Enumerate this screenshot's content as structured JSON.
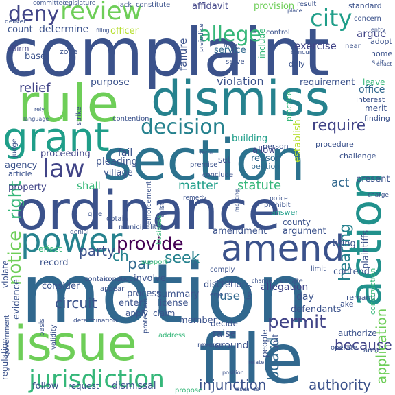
{
  "palette": {
    "deep_purple": "#440154",
    "indigo": "#3b528b",
    "slate_blue": "#414487",
    "steel_blue": "#31688e",
    "teal": "#26828e",
    "sea_green": "#1f9e89",
    "green": "#35b779",
    "light_green": "#6ece58",
    "lime": "#b5de2b"
  },
  "words": [
    {
      "text": "complaint",
      "color": "#3b528b"
    },
    {
      "text": "motion",
      "color": "#31688e"
    },
    {
      "text": "section",
      "color": "#2c728e"
    },
    {
      "text": "ordinance",
      "color": "#3b528b"
    },
    {
      "text": "rule",
      "color": "#6ece58"
    },
    {
      "text": "dismiss",
      "color": "#26828e"
    },
    {
      "text": "file",
      "color": "#31688e"
    },
    {
      "text": "issue",
      "color": "#6ece58"
    },
    {
      "text": "grant",
      "color": "#1f9e89"
    },
    {
      "text": "action",
      "color": "#21918c"
    },
    {
      "text": "amend",
      "color": "#3b528b"
    },
    {
      "text": "power",
      "color": "#26828e"
    },
    {
      "text": "law",
      "color": "#414487"
    },
    {
      "text": "review",
      "color": "#6ece58"
    },
    {
      "text": "deny",
      "color": "#414487"
    },
    {
      "text": "city",
      "color": "#1f9e89"
    },
    {
      "text": "allege",
      "color": "#35b779"
    },
    {
      "text": "jurisdiction",
      "color": "#35b779"
    },
    {
      "text": "decision",
      "color": "#26828e"
    },
    {
      "text": "notice",
      "color": "#6ece58"
    },
    {
      "text": "right",
      "color": "#35b779"
    },
    {
      "text": "provide",
      "color": "#440154"
    },
    {
      "text": "permit",
      "color": "#414487"
    },
    {
      "text": "require",
      "color": "#414487"
    },
    {
      "text": "hearing",
      "color": "#26828e"
    },
    {
      "text": "board",
      "color": "#31688e"
    },
    {
      "text": "seek",
      "color": "#26828e"
    },
    {
      "text": "party",
      "color": "#3b528b"
    },
    {
      "text": "injunction",
      "color": "#3b528b"
    },
    {
      "text": "authority",
      "color": "#3b528b"
    },
    {
      "text": "because",
      "color": "#414487"
    },
    {
      "text": "application",
      "color": "#6ece58"
    },
    {
      "text": "circuit",
      "color": "#3b528b"
    },
    {
      "text": "relief",
      "color": "#414487"
    },
    {
      "text": "statute",
      "color": "#35b779"
    },
    {
      "text": "matter",
      "color": "#1f9e89"
    },
    {
      "text": "violation",
      "color": "#3b528b"
    },
    {
      "text": "establish",
      "color": "#b5de2b"
    },
    {
      "text": "failure",
      "color": "#3b528b"
    },
    {
      "text": "set",
      "color": "#3b528b"
    },
    {
      "text": "reason",
      "color": "#31688e"
    },
    {
      "text": "petition",
      "color": "#31688e"
    },
    {
      "text": "requirement",
      "color": "#3b528b"
    },
    {
      "text": "office",
      "color": "#31688e"
    },
    {
      "text": "interest",
      "color": "#3b528b"
    },
    {
      "text": "merit",
      "color": "#3b528b"
    },
    {
      "text": "finding",
      "color": "#3b528b"
    },
    {
      "text": "exercise",
      "color": "#414487"
    },
    {
      "text": "argue",
      "color": "#414487"
    },
    {
      "text": "provision",
      "color": "#6ece58"
    },
    {
      "text": "affidavit",
      "color": "#414487"
    },
    {
      "text": "service",
      "color": "#31688e"
    },
    {
      "text": "include",
      "color": "#35b779"
    },
    {
      "text": "determine",
      "color": "#3b528b"
    },
    {
      "text": "count",
      "color": "#3b528b"
    },
    {
      "text": "officer",
      "color": "#b5de2b"
    },
    {
      "text": "base",
      "color": "#3b528b"
    },
    {
      "text": "affirm",
      "color": "#414487"
    },
    {
      "text": "zone",
      "color": "#3b528b"
    },
    {
      "text": "purpose",
      "color": "#3b528b"
    },
    {
      "text": "building",
      "color": "#1f9e89"
    },
    {
      "text": "allow",
      "color": "#414487"
    },
    {
      "text": "fail",
      "color": "#3b528b"
    },
    {
      "text": "proceeding",
      "color": "#414487"
    },
    {
      "text": "pleading",
      "color": "#3b528b"
    },
    {
      "text": "village",
      "color": "#3b528b"
    },
    {
      "text": "agency",
      "color": "#3b528b"
    },
    {
      "text": "article",
      "color": "#3b528b"
    },
    {
      "text": "property",
      "color": "#414487"
    },
    {
      "text": "shall",
      "color": "#35b779"
    },
    {
      "text": "act",
      "color": "#31688e"
    },
    {
      "text": "present",
      "color": "#3b528b"
    },
    {
      "text": "amendment",
      "color": "#3b528b"
    },
    {
      "text": "argument",
      "color": "#3b528b"
    },
    {
      "text": "county",
      "color": "#3b528b"
    },
    {
      "text": "answer",
      "color": "#1f9e89"
    },
    {
      "text": "record",
      "color": "#3b528b"
    },
    {
      "text": "effect",
      "color": "#35b779"
    },
    {
      "text": "par",
      "color": "#31688e"
    },
    {
      "text": "summary",
      "color": "#3b528b"
    },
    {
      "text": "license",
      "color": "#3b528b"
    },
    {
      "text": "discretion",
      "color": "#3b528b"
    },
    {
      "text": "use",
      "color": "#31688e"
    },
    {
      "text": "allegation",
      "color": "#414487"
    },
    {
      "text": "day",
      "color": "#3b528b"
    },
    {
      "text": "contend",
      "color": "#3b528b"
    },
    {
      "text": "ch",
      "color": "#26828e"
    },
    {
      "text": "involve",
      "color": "#3b528b"
    },
    {
      "text": "consider",
      "color": "#3b528b"
    },
    {
      "text": "evidence",
      "color": "#3b528b"
    },
    {
      "text": "enter",
      "color": "#3b528b"
    },
    {
      "text": "apply",
      "color": "#3b528b"
    },
    {
      "text": "claim",
      "color": "#3b528b"
    },
    {
      "text": "member",
      "color": "#3b528b"
    },
    {
      "text": "process",
      "color": "#3b528b"
    },
    {
      "text": "defendants",
      "color": "#3b528b"
    },
    {
      "text": "raise",
      "color": "#3b528b"
    },
    {
      "text": "ground",
      "color": "#3b528b"
    },
    {
      "text": "unit",
      "color": "#3b528b"
    },
    {
      "text": "people",
      "color": "#3b528b"
    },
    {
      "text": "decide",
      "color": "#3b528b"
    },
    {
      "text": "dismissal",
      "color": "#3b528b"
    },
    {
      "text": "request",
      "color": "#3b528b"
    },
    {
      "text": "follow",
      "color": "#3b528b"
    },
    {
      "text": "regulation",
      "color": "#3b528b"
    },
    {
      "text": "remand",
      "color": "#3b528b"
    },
    {
      "text": "bring",
      "color": "#3b528b"
    },
    {
      "text": "plaintiffs",
      "color": "#3b528b"
    },
    {
      "text": "construction",
      "color": "#35b779"
    },
    {
      "text": "lake",
      "color": "#3b528b"
    },
    {
      "text": "authorize",
      "color": "#3b528b"
    },
    {
      "text": "adopt",
      "color": "#3b528b"
    },
    {
      "text": "home",
      "color": "#3b528b"
    },
    {
      "text": "suit",
      "color": "#3b528b"
    },
    {
      "text": "near",
      "color": "#3b528b"
    },
    {
      "text": "concern",
      "color": "#3b528b"
    },
    {
      "text": "standard",
      "color": "#3b528b"
    },
    {
      "text": "control",
      "color": "#3b528b"
    },
    {
      "text": "result",
      "color": "#3b528b"
    },
    {
      "text": "constitute",
      "color": "#3b528b"
    },
    {
      "text": "lack",
      "color": "#3b528b"
    },
    {
      "text": "serve",
      "color": "#3b528b"
    },
    {
      "text": "duly",
      "color": "#3b528b"
    },
    {
      "text": "note",
      "color": "#3b528b"
    },
    {
      "text": "concur",
      "color": "#3b528b"
    },
    {
      "text": "leave",
      "color": "#35b779"
    },
    {
      "text": "procedure",
      "color": "#3b528b"
    },
    {
      "text": "challenge",
      "color": "#3b528b"
    },
    {
      "text": "person",
      "color": "#3b528b"
    },
    {
      "text": "remedy",
      "color": "#3b528b"
    },
    {
      "text": "premise",
      "color": "#3b528b"
    },
    {
      "text": "conclude",
      "color": "#3b528b"
    },
    {
      "text": "police",
      "color": "#3b528b"
    },
    {
      "text": "prohibit",
      "color": "#3b528b"
    },
    {
      "text": "enforcement",
      "color": "#3b528b"
    },
    {
      "text": "exist",
      "color": "#3b528b"
    },
    {
      "text": "obtain",
      "color": "#3b528b"
    },
    {
      "text": "give",
      "color": "#3b528b"
    },
    {
      "text": "municipality",
      "color": "#3b528b"
    },
    {
      "text": "contain",
      "color": "#3b528b"
    },
    {
      "text": "conduct",
      "color": "#3b528b"
    },
    {
      "text": "support",
      "color": "#35b779"
    },
    {
      "text": "comply",
      "color": "#3b528b"
    },
    {
      "text": "limit",
      "color": "#3b528b"
    },
    {
      "text": "vacate",
      "color": "#3b528b"
    },
    {
      "text": "reverse",
      "color": "#3b528b"
    },
    {
      "text": "strike",
      "color": "#3b528b"
    },
    {
      "text": "contention",
      "color": "#3b528b"
    },
    {
      "text": "violate",
      "color": "#3b528b"
    },
    {
      "text": "judge",
      "color": "#3b528b"
    },
    {
      "text": "practice",
      "color": "#35b779"
    },
    {
      "text": "business",
      "color": "#35b779"
    },
    {
      "text": "denial",
      "color": "#3b528b"
    },
    {
      "text": "validity",
      "color": "#3b528b"
    },
    {
      "text": "determination",
      "color": "#3b528b"
    },
    {
      "text": "appear",
      "color": "#3b528b"
    },
    {
      "text": "protection",
      "color": "#3b528b"
    },
    {
      "text": "address",
      "color": "#35b779"
    },
    {
      "text": "operate",
      "color": "#3b528b"
    },
    {
      "text": "area",
      "color": "#3b528b"
    },
    {
      "text": "propose",
      "color": "#35b779"
    },
    {
      "text": "government",
      "color": "#3b528b"
    },
    {
      "text": "basis",
      "color": "#3b528b"
    },
    {
      "text": "deliver",
      "color": "#3b528b"
    },
    {
      "text": "committee",
      "color": "#3b528b"
    },
    {
      "text": "legislature",
      "color": "#3b528b"
    },
    {
      "text": "prejudice",
      "color": "#3b528b"
    },
    {
      "text": "place",
      "color": "#3b528b"
    },
    {
      "text": "entry",
      "color": "#3b528b"
    },
    {
      "text": "enact",
      "color": "#3b528b"
    },
    {
      "text": "language",
      "color": "#3b528b"
    },
    {
      "text": "rely",
      "color": "#3b528b"
    },
    {
      "text": "assert",
      "color": "#3b528b"
    },
    {
      "text": "enjoin",
      "color": "#3b528b"
    },
    {
      "text": "change",
      "color": "#3b528b"
    },
    {
      "text": "charge",
      "color": "#3b528b"
    },
    {
      "text": "meeting",
      "color": "#3b528b"
    },
    {
      "text": "term",
      "color": "#3b528b"
    },
    {
      "text": "body",
      "color": "#3b528b"
    },
    {
      "text": "filing",
      "color": "#3b528b"
    },
    {
      "text": "issuance",
      "color": "#3b528b"
    },
    {
      "text": "position",
      "color": "#3b528b"
    },
    {
      "text": "relate",
      "color": "#3b528b"
    }
  ]
}
